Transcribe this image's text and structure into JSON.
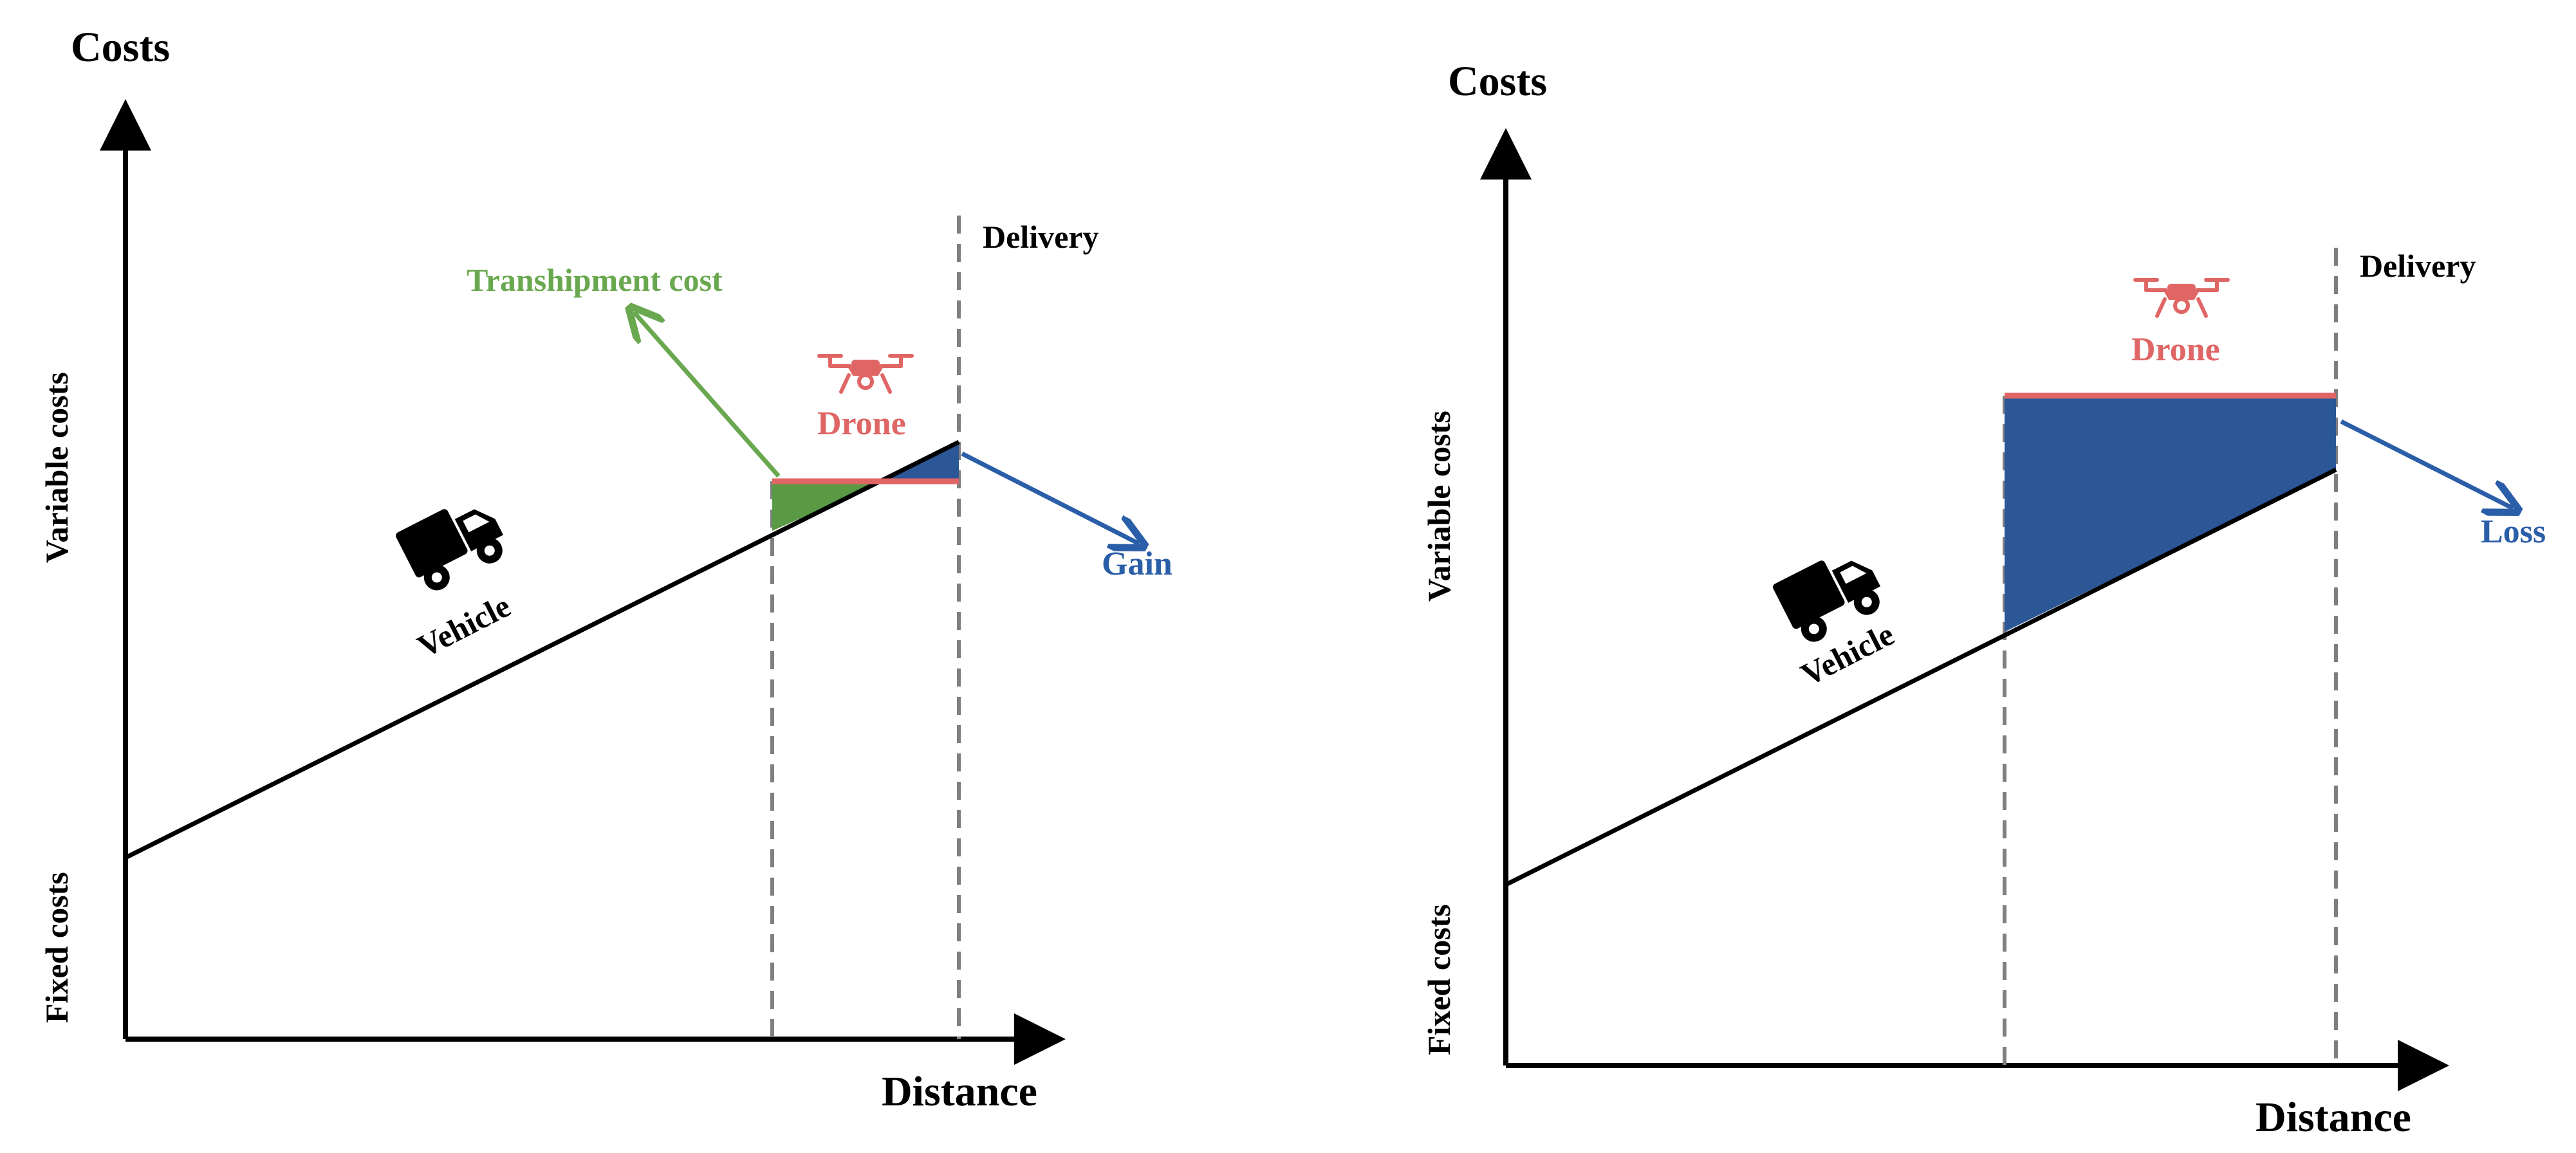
{
  "colors": {
    "axis": "#000000",
    "vehicle_line": "#000000",
    "drone_line": "#e06666",
    "drone_label": "#e06666",
    "gain_fill": "#2b5797",
    "transhipment_fill": "#5a9a44",
    "transhipment_label": "#6aa84f",
    "gain_label": "#2b5ea8",
    "guide": "#7f7f7f"
  },
  "left_panel": {
    "y_axis_title": "Costs",
    "x_axis_title": "Distance",
    "variable_costs_label": "Variable costs",
    "fixed_costs_label": "Fixed costs",
    "delivery_label": "Delivery",
    "drone_label": "Drone",
    "vehicle_label": "Vehicle",
    "transhipment_label": "Transhipment cost",
    "gain_label": "Gain",
    "vehicle_icon": "truck-icon",
    "drone_icon": "drone-icon"
  },
  "right_panel": {
    "y_axis_title": "Costs",
    "x_axis_title": "Distance",
    "variable_costs_label": "Variable costs",
    "fixed_costs_label": "Fixed costs",
    "delivery_label": "Delivery",
    "drone_label": "Drone",
    "vehicle_label": "Vehicle",
    "loss_label": "Loss",
    "vehicle_icon": "truck-icon",
    "drone_icon": "drone-icon"
  }
}
